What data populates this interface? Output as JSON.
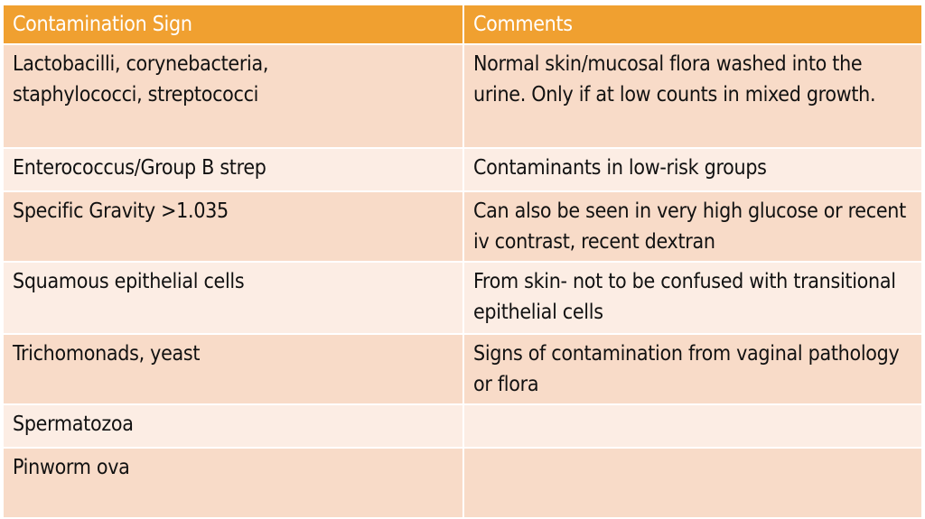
{
  "colors": {
    "header": "#f0a030",
    "row_dark": "#f8dbc8",
    "row_light": "#fcede4"
  },
  "table": {
    "headers": [
      "Contamination Sign",
      "Comments"
    ],
    "rows": [
      {
        "sign": "Lactobacilli, corynebacteria, staphylococci, streptococci",
        "comment": "Normal skin/mucosal flora washed into the urine.  Only if at low counts in mixed growth."
      },
      {
        "sign": "Enterococcus/Group B strep",
        "comment": "Contaminants in low-risk groups"
      },
      {
        "sign": "Specific Gravity >1.035",
        "comment": "Can also be seen in very high glucose or recent iv contrast, recent dextran"
      },
      {
        "sign": "Squamous epithelial cells",
        "comment": "From skin- not to be confused with transitional epithelial cells"
      },
      {
        "sign": "Trichomonads, yeast",
        "comment": "Signs of contamination from vaginal pathology or flora"
      },
      {
        "sign": "Spermatozoa",
        "comment": ""
      },
      {
        "sign": "Pinworm ova",
        "comment": ""
      }
    ]
  }
}
